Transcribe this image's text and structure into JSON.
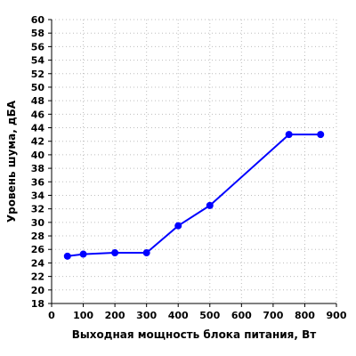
{
  "chart_data": {
    "type": "line",
    "xlabel": "Выходная мощность блока питания, Вт",
    "ylabel": "Уровень шума, дБА",
    "xlim": [
      0,
      900
    ],
    "ylim": [
      18,
      60
    ],
    "x_ticks": [
      0,
      100,
      200,
      300,
      400,
      500,
      600,
      700,
      800,
      900
    ],
    "y_ticks": [
      18,
      20,
      22,
      24,
      26,
      28,
      30,
      32,
      34,
      36,
      38,
      40,
      42,
      44,
      46,
      48,
      50,
      52,
      54,
      56,
      58,
      60
    ],
    "grid": true,
    "series": [
      {
        "color": "#0000ff",
        "x": [
          50,
          100,
          200,
          300,
          400,
          500,
          750,
          850
        ],
        "y": [
          25.0,
          25.3,
          25.5,
          25.5,
          29.5,
          32.5,
          43.0,
          43.0
        ]
      }
    ]
  }
}
